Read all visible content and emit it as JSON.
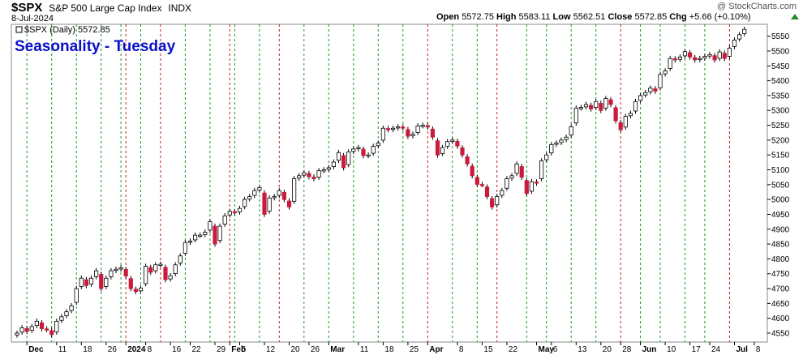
{
  "header": {
    "symbol": "$SPX",
    "description": "S&P 500 Large Cap Index",
    "exchange": "INDX",
    "date": "8-Jul-2024",
    "credit": "@ StockCharts.com",
    "open_label": "Open",
    "open": "5572.75",
    "high_label": "High",
    "high": "5583.11",
    "low_label": "Low",
    "low": "5562.51",
    "close_label": "Close",
    "close": "5572.85",
    "chg_label": "Chg",
    "chg": "+5.66 (+0.10%)",
    "chg_color": "#2a8a2a"
  },
  "chart_data": {
    "type": "candlestick",
    "title": "Seasonality - Tuesday",
    "legend_label": "$SPX (Daily) 5572.85",
    "up_color": "#ffffff",
    "down_color": "#cc1a3c",
    "green_line_color": "#1a9a1a",
    "red_line_color": "#cc1a1a",
    "ylim": [
      4520,
      5590
    ],
    "y_ticks": [
      4550,
      4600,
      4650,
      4700,
      4750,
      4800,
      4850,
      4900,
      4950,
      5000,
      5050,
      5100,
      5150,
      5200,
      5250,
      5300,
      5350,
      5400,
      5450,
      5500,
      5550
    ],
    "x_ticks": [
      {
        "label": "Dec",
        "idx": 2,
        "bold": true
      },
      {
        "label": "11",
        "idx": 8,
        "bold": false
      },
      {
        "label": "18",
        "idx": 13,
        "bold": false
      },
      {
        "label": "26",
        "idx": 18,
        "bold": false
      },
      {
        "label": "2024",
        "idx": 22,
        "bold": true
      },
      {
        "label": "8",
        "idx": 26,
        "bold": false
      },
      {
        "label": "16",
        "idx": 31,
        "bold": false
      },
      {
        "label": "22",
        "idx": 35,
        "bold": false
      },
      {
        "label": "29",
        "idx": 40,
        "bold": false
      },
      {
        "label": "Feb",
        "idx": 43,
        "bold": true
      },
      {
        "label": "5",
        "idx": 45,
        "bold": false
      },
      {
        "label": "12",
        "idx": 50,
        "bold": false
      },
      {
        "label": "20",
        "idx": 55,
        "bold": false
      },
      {
        "label": "26",
        "idx": 59,
        "bold": false
      },
      {
        "label": "Mar",
        "idx": 63,
        "bold": true
      },
      {
        "label": "11",
        "idx": 69,
        "bold": false
      },
      {
        "label": "18",
        "idx": 74,
        "bold": false
      },
      {
        "label": "25",
        "idx": 79,
        "bold": false
      },
      {
        "label": "Apr",
        "idx": 83,
        "bold": true
      },
      {
        "label": "8",
        "idx": 89,
        "bold": false
      },
      {
        "label": "15",
        "idx": 94,
        "bold": false
      },
      {
        "label": "22",
        "idx": 99,
        "bold": false
      },
      {
        "label": "May",
        "idx": 105,
        "bold": true
      },
      {
        "label": "6",
        "idx": 108,
        "bold": false
      },
      {
        "label": "13",
        "idx": 113,
        "bold": false
      },
      {
        "label": "20",
        "idx": 118,
        "bold": false
      },
      {
        "label": "28",
        "idx": 122,
        "bold": false
      },
      {
        "label": "Jun",
        "idx": 126,
        "bold": true
      },
      {
        "label": "10",
        "idx": 131,
        "bold": false
      },
      {
        "label": "17",
        "idx": 136,
        "bold": false
      },
      {
        "label": "24",
        "idx": 140,
        "bold": false
      },
      {
        "label": "Jul",
        "idx": 145,
        "bold": true
      },
      {
        "label": "8",
        "idx": 149,
        "bold": false
      }
    ],
    "green_lines": [
      2,
      7,
      12,
      17,
      21,
      25,
      34,
      39,
      44,
      49,
      58,
      63,
      68,
      73,
      78,
      88,
      93,
      103,
      107,
      112,
      117,
      126,
      130,
      135,
      139
    ],
    "red_lines": [
      22,
      29,
      43,
      53,
      83,
      97,
      122,
      144
    ],
    "closes": [
      4550,
      4568,
      4556,
      4572,
      4590,
      4565,
      4562,
      4545,
      4590,
      4605,
      4622,
      4642,
      4700,
      4735,
      4710,
      4735,
      4760,
      4700,
      4735,
      4760,
      4765,
      4770,
      4742,
      4700,
      4690,
      4702,
      4775,
      4755,
      4780,
      4782,
      4730,
      4743,
      4780,
      4810,
      4855,
      4860,
      4880,
      4880,
      4890,
      4925,
      4850,
      4910,
      4945,
      4960,
      4955,
      4970,
      5000,
      5010,
      5030,
      5040,
      4950,
      5005,
      5010,
      5030,
      5000,
      4975,
      5070,
      5080,
      5090,
      5077,
      5070,
      5097,
      5100,
      5107,
      5126,
      5158,
      5107,
      5160,
      5170,
      5175,
      5148,
      5150,
      5179,
      5190,
      5240,
      5235,
      5240,
      5245,
      5241,
      5213,
      5220,
      5248,
      5250,
      5244,
      5210,
      5150,
      5175,
      5195,
      5200,
      5180,
      5150,
      5120,
      5080,
      5051,
      5050,
      5010,
      4975,
      5010,
      5030,
      5070,
      5080,
      5120,
      5075,
      5020,
      5060,
      5055,
      5130,
      5150,
      5185,
      5190,
      5200,
      5210,
      5245,
      5308,
      5310,
      5320,
      5305,
      5330,
      5300,
      5340,
      5320,
      5265,
      5235,
      5280,
      5290,
      5330,
      5350,
      5360,
      5375,
      5365,
      5421,
      5433,
      5475,
      5470,
      5480,
      5498,
      5480,
      5470,
      5475,
      5482,
      5488,
      5470,
      5497,
      5475,
      5510,
      5537,
      5555,
      5573
    ]
  }
}
